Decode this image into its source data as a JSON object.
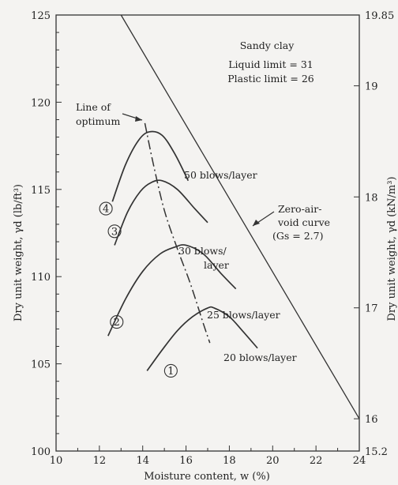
{
  "chart_data": {
    "type": "line",
    "xlabel": "Moisture content, w (%)",
    "ylabel_left": "Dry unit weight, γd (lb/ft³)",
    "ylabel_right": "Dry unit weight, γd (kN/m³)",
    "xlim": [
      10,
      24
    ],
    "ylim": [
      100,
      125
    ],
    "x_ticks": [
      10,
      12,
      14,
      16,
      18,
      20,
      22,
      24
    ],
    "y_ticks": [
      100,
      105,
      110,
      115,
      120,
      125
    ],
    "right_ticks": [
      {
        "label": "15.2",
        "value_left": 100
      },
      {
        "label": "16",
        "value_left": 101.85
      },
      {
        "label": "17",
        "value_left": 108.21
      },
      {
        "label": "18",
        "value_left": 114.57
      },
      {
        "label": "19",
        "value_left": 120.94
      },
      {
        "label": "19.85",
        "value_left": 125
      }
    ],
    "series": [
      {
        "name": "50 blows/layer",
        "marker": "4",
        "points": [
          [
            12.6,
            114.3
          ],
          [
            13.2,
            116.4
          ],
          [
            13.8,
            117.8
          ],
          [
            14.3,
            118.3
          ],
          [
            14.9,
            118.1
          ],
          [
            15.5,
            117.0
          ],
          [
            16.1,
            115.5
          ]
        ]
      },
      {
        "name": "30 blows/layer",
        "marker": "3",
        "points": [
          [
            12.7,
            111.8
          ],
          [
            13.3,
            113.7
          ],
          [
            13.9,
            114.9
          ],
          [
            14.4,
            115.4
          ],
          [
            14.9,
            115.5
          ],
          [
            15.6,
            115.0
          ],
          [
            16.4,
            113.9
          ],
          [
            17.0,
            113.1
          ]
        ]
      },
      {
        "name": "25 blows/layer",
        "marker": "2",
        "points": [
          [
            12.4,
            106.6
          ],
          [
            13.2,
            108.7
          ],
          [
            14.0,
            110.3
          ],
          [
            14.8,
            111.3
          ],
          [
            15.5,
            111.7
          ],
          [
            16.0,
            111.8
          ],
          [
            16.8,
            111.3
          ],
          [
            17.6,
            110.2
          ],
          [
            18.3,
            109.3
          ]
        ]
      },
      {
        "name": "20 blows/layer",
        "marker": "1",
        "points": [
          [
            14.2,
            104.6
          ],
          [
            14.9,
            105.8
          ],
          [
            15.6,
            106.9
          ],
          [
            16.3,
            107.7
          ],
          [
            17.0,
            108.2
          ],
          [
            17.3,
            108.2
          ],
          [
            18.0,
            107.7
          ],
          [
            18.6,
            106.9
          ],
          [
            19.3,
            105.9
          ]
        ]
      }
    ],
    "line_of_optimum": [
      [
        14.1,
        118.8
      ],
      [
        14.5,
        116.4
      ],
      [
        15.0,
        113.8
      ],
      [
        15.6,
        111.6
      ],
      [
        16.2,
        109.6
      ],
      [
        16.8,
        107.3
      ],
      [
        17.1,
        106.2
      ]
    ],
    "zero_air_void": [
      [
        13.0,
        125
      ],
      [
        24,
        101.85
      ]
    ],
    "annotations": {
      "soil": "Sandy clay",
      "liquid_limit": "Liquid limit = 31",
      "plastic_limit": "Plastic limit = 26",
      "optimum_line_1": "Line of",
      "optimum_line_2": "optimum",
      "zav_1": "Zero-air-",
      "zav_2": "void curve",
      "zav_3": "(Gs = 2.7)",
      "blows_50": "50 blows/layer",
      "blows_30_1": "30 blows/",
      "blows_30_2": "layer",
      "blows_25": "25 blows/layer",
      "blows_20": "20 blows/layer"
    }
  }
}
